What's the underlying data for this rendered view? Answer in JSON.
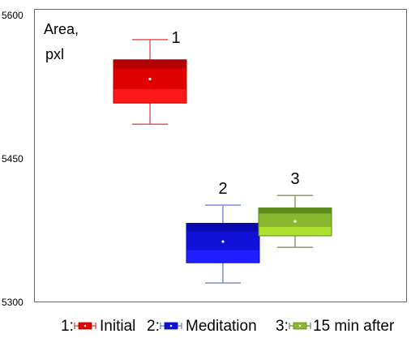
{
  "chart_data": {
    "type": "box",
    "ylabel_line1": "Area,",
    "ylabel_line2": "pxl",
    "ylim": [
      5300,
      5600
    ],
    "yticks": [
      5300,
      5450,
      5600
    ],
    "grid": false,
    "legend_position": "bottom",
    "boxes": [
      {
        "label": "1",
        "legend_prefix": "1:",
        "name": "Initial",
        "whisker_high": 5574,
        "q3": 5553,
        "median": 5533,
        "q1": 5508,
        "whisker_low": 5486,
        "color_dark": "#b30000",
        "color_mid": "#e00000",
        "color_light": "#ff1a1a",
        "whisker_color": "#e05a5a"
      },
      {
        "label": "2",
        "legend_prefix": "2:",
        "name": "Meditation",
        "whisker_high": 5402,
        "q3": 5383,
        "median": 5364,
        "q1": 5342,
        "whisker_low": 5321,
        "color_dark": "#0a0ab0",
        "color_mid": "#1010d8",
        "color_light": "#2020ff",
        "whisker_color": "#7a8ee0"
      },
      {
        "label": "3",
        "legend_prefix": "3:",
        "name": "15 min after",
        "whisker_high": 5412,
        "q3": 5399,
        "median": 5385,
        "q1": 5370,
        "whisker_low": 5358,
        "color_dark": "#5a8a1a",
        "color_mid": "#88b82e",
        "color_light": "#aee030",
        "whisker_color": "#8a9a6a"
      }
    ]
  }
}
